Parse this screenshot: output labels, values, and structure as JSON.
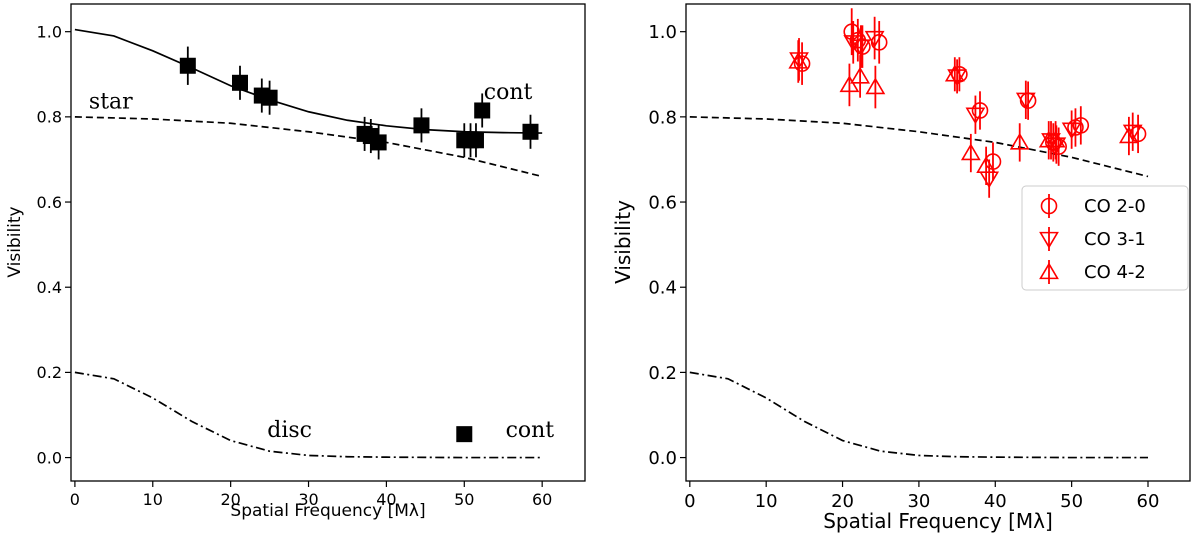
{
  "chart_data": [
    {
      "type": "scatter",
      "xlabel": "Spatial Frequency [Mλ]",
      "ylabel": "Visibility",
      "xlim": [
        -0.5,
        65.5
      ],
      "ylim": [
        -0.055,
        1.065
      ],
      "xticks": [
        "0",
        "10",
        "20",
        "30",
        "40",
        "50",
        "60"
      ],
      "yticks": [
        "0.0",
        "0.2",
        "0.4",
        "0.6",
        "0.8",
        "1.0"
      ],
      "grid": false,
      "lines": [
        {
          "style": "solid",
          "x": [
            0,
            5,
            10,
            15,
            20,
            25,
            30,
            35,
            40,
            45,
            50,
            55,
            60
          ],
          "y": [
            1.005,
            0.99,
            0.955,
            0.915,
            0.873,
            0.84,
            0.812,
            0.792,
            0.779,
            0.77,
            0.765,
            0.763,
            0.762
          ]
        },
        {
          "style": "dashed",
          "x": [
            0,
            10,
            20,
            30,
            40,
            50,
            60
          ],
          "y": [
            0.8,
            0.795,
            0.785,
            0.765,
            0.74,
            0.705,
            0.66
          ]
        },
        {
          "style": "dashdot",
          "x": [
            0,
            5,
            10,
            15,
            20,
            25,
            30,
            35,
            40,
            50,
            60
          ],
          "y": [
            0.2,
            0.185,
            0.14,
            0.085,
            0.04,
            0.015,
            0.005,
            0.002,
            0.001,
            0.0,
            0.0
          ]
        }
      ],
      "series": [
        {
          "marker": "square",
          "color": "#000000",
          "x": [
            14.5,
            21.2,
            24.0,
            25.0,
            37.2,
            38.0,
            39.0,
            44.5,
            50.0,
            50.8,
            51.5,
            52.3,
            58.5
          ],
          "y": [
            0.92,
            0.88,
            0.85,
            0.845,
            0.76,
            0.755,
            0.74,
            0.78,
            0.745,
            0.745,
            0.745,
            0.815,
            0.765
          ],
          "yerr": [
            0.045,
            0.04,
            0.04,
            0.04,
            0.04,
            0.04,
            0.04,
            0.04,
            0.04,
            0.04,
            0.04,
            0.04,
            0.04
          ]
        }
      ],
      "annotations": [
        {
          "text": "star",
          "x": 1.8,
          "y": 0.82
        },
        {
          "text": "cont",
          "x": 52.5,
          "y": 0.842
        },
        {
          "text": "disc",
          "x": 24.7,
          "y": 0.048
        },
        {
          "text": "cont",
          "x": 55.3,
          "y": 0.048
        }
      ],
      "legend_marker": {
        "x": 50.0,
        "y": 0.055
      }
    },
    {
      "type": "scatter",
      "xlabel": "Spatial Frequency [Mλ]",
      "ylabel": "Visibility",
      "xlim": [
        -0.5,
        65.5
      ],
      "ylim": [
        -0.055,
        1.065
      ],
      "xticks": [
        "0",
        "10",
        "20",
        "30",
        "40",
        "50",
        "60"
      ],
      "yticks": [
        "0.0",
        "0.2",
        "0.4",
        "0.6",
        "0.8",
        "1.0"
      ],
      "grid": false,
      "legend": "center-right",
      "lines": [
        {
          "style": "dashed",
          "x": [
            0,
            10,
            20,
            30,
            40,
            50,
            60
          ],
          "y": [
            0.8,
            0.795,
            0.785,
            0.765,
            0.74,
            0.705,
            0.66
          ]
        },
        {
          "style": "dashdot",
          "x": [
            0,
            5,
            10,
            15,
            20,
            25,
            30,
            35,
            40,
            50,
            60
          ],
          "y": [
            0.2,
            0.185,
            0.14,
            0.085,
            0.04,
            0.015,
            0.005,
            0.002,
            0.001,
            0.0,
            0.0
          ]
        }
      ],
      "series": [
        {
          "name": "CO 2-0",
          "marker": "circle",
          "color": "#ff0000",
          "x": [
            14.7,
            21.2,
            22.0,
            22.6,
            24.8,
            35.3,
            38.0,
            39.7,
            44.3,
            47.6,
            48.3,
            50.5,
            51.2,
            58.7
          ],
          "y": [
            0.925,
            1.0,
            0.98,
            0.965,
            0.975,
            0.9,
            0.815,
            0.695,
            0.838,
            0.74,
            0.73,
            0.775,
            0.78,
            0.76
          ],
          "yerr": [
            0.05,
            0.055,
            0.05,
            0.05,
            0.05,
            0.04,
            0.045,
            0.045,
            0.045,
            0.045,
            0.045,
            0.045,
            0.045,
            0.045
          ]
        },
        {
          "name": "CO 3-1",
          "marker": "triangle-down",
          "color": "#ff0000",
          "x": [
            14.3,
            21.4,
            22.4,
            24.2,
            35.0,
            37.4,
            39.2,
            44.0,
            47.3,
            48.0,
            50.0,
            58.0
          ],
          "y": [
            0.935,
            0.975,
            0.965,
            0.985,
            0.895,
            0.805,
            0.655,
            0.84,
            0.745,
            0.735,
            0.77,
            0.765
          ],
          "yerr": [
            0.05,
            0.05,
            0.05,
            0.05,
            0.04,
            0.045,
            0.045,
            0.045,
            0.045,
            0.045,
            0.045,
            0.045
          ]
        },
        {
          "name": "CO 4-2",
          "marker": "triangle-up",
          "color": "#ff0000",
          "x": [
            14.2,
            20.9,
            22.3,
            24.3,
            34.7,
            36.8,
            38.8,
            43.2,
            47.0,
            47.9,
            57.5
          ],
          "y": [
            0.93,
            0.875,
            0.895,
            0.87,
            0.9,
            0.715,
            0.685,
            0.74,
            0.745,
            0.745,
            0.755
          ],
          "yerr": [
            0.05,
            0.05,
            0.05,
            0.05,
            0.04,
            0.045,
            0.045,
            0.045,
            0.045,
            0.045,
            0.045
          ]
        }
      ]
    }
  ]
}
